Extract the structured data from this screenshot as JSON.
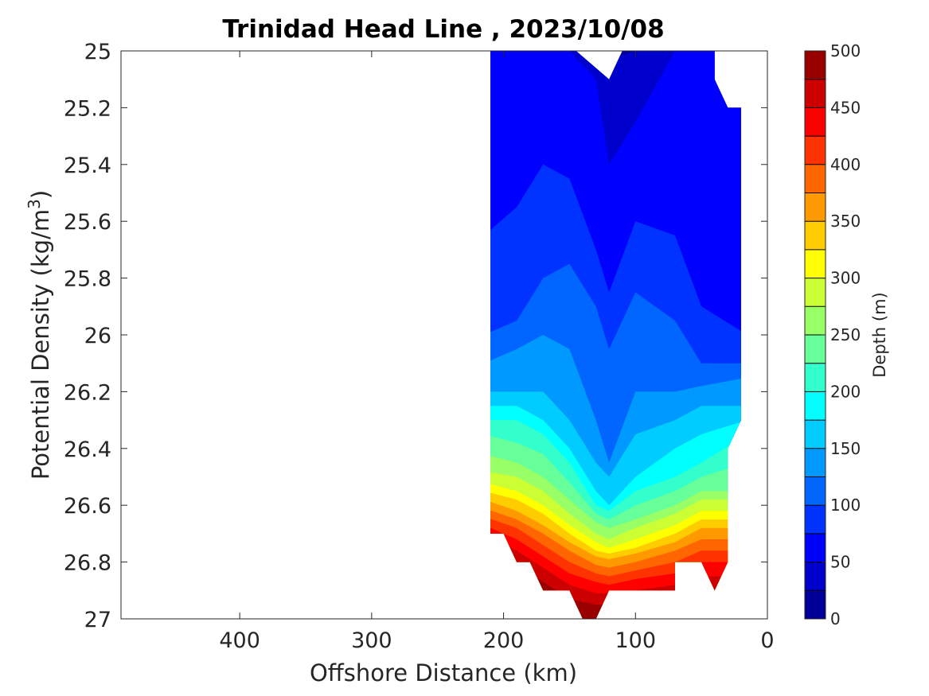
{
  "chart_data": {
    "type": "contour",
    "title": "Trinidad Head Line , 2023/10/08",
    "xlabel": "Offshore Distance (km)",
    "ylabel_main": "Potential Density (kg/m",
    "ylabel_sup": "3",
    "ylabel_close": ")",
    "xlim": [
      490,
      0
    ],
    "x_reversed": true,
    "ylim": [
      25,
      27
    ],
    "y_reversed": true,
    "xticks": [
      400,
      300,
      200,
      100,
      0
    ],
    "yticks": [
      25,
      25.2,
      25.4,
      25.6,
      25.8,
      26,
      26.2,
      26.4,
      26.6,
      26.8,
      27
    ],
    "ytick_labels": [
      "25",
      "25.2",
      "25.4",
      "25.6",
      "25.8",
      "26",
      "26.2",
      "26.4",
      "26.6",
      "26.8",
      "27"
    ],
    "colorbar": {
      "label": "Depth (m)",
      "range": [
        0,
        500
      ],
      "step": 25,
      "ticks": [
        0,
        50,
        100,
        150,
        200,
        250,
        300,
        350,
        400,
        450,
        500
      ],
      "colormap": "jet"
    },
    "coverage_x": [
      210,
      20
    ],
    "boundary": [
      [
        210,
        25.0
      ],
      [
        145,
        25.0
      ],
      [
        120,
        25.1
      ],
      [
        110,
        25.0
      ],
      [
        40,
        25.0
      ],
      [
        40,
        25.1
      ],
      [
        30,
        25.2
      ],
      [
        20,
        25.2
      ],
      [
        20,
        26.3
      ],
      [
        30,
        26.4
      ],
      [
        30,
        26.8
      ],
      [
        40,
        26.9
      ],
      [
        50,
        26.8
      ],
      [
        70,
        26.8
      ],
      [
        70,
        26.9
      ],
      [
        110,
        26.9
      ],
      [
        120,
        26.9
      ],
      [
        130,
        27.0
      ],
      [
        140,
        27.0
      ],
      [
        150,
        26.9
      ],
      [
        170,
        26.9
      ],
      [
        180,
        26.8
      ],
      [
        190,
        26.8
      ],
      [
        200,
        26.7
      ],
      [
        210,
        26.7
      ]
    ],
    "contour_depths": {
      "distance_km": [
        210,
        190,
        170,
        150,
        130,
        120,
        100,
        70,
        50,
        20
      ],
      "rows": [
        {
          "level": 25,
          "density": [
            25.0,
            25.0,
            25.0,
            25.0,
            25.0,
            25.03,
            25.0,
            25.0,
            25.0,
            25.0
          ]
        },
        {
          "level": 50,
          "density": [
            25.0,
            25.0,
            25.0,
            25.0,
            25.1,
            25.4,
            25.25,
            25.0,
            25.0,
            25.0
          ]
        },
        {
          "level": 75,
          "density": [
            25.65,
            25.55,
            25.4,
            25.45,
            25.7,
            25.85,
            25.6,
            25.65,
            25.9,
            26.0
          ]
        },
        {
          "level": 100,
          "density": [
            26.0,
            25.95,
            25.8,
            25.75,
            25.9,
            26.05,
            25.85,
            25.95,
            26.1,
            26.1
          ]
        },
        {
          "level": 125,
          "density": [
            26.1,
            26.05,
            26.0,
            26.05,
            26.3,
            26.45,
            26.2,
            26.2,
            26.18,
            26.15
          ]
        },
        {
          "level": 150,
          "density": [
            26.2,
            26.2,
            26.2,
            26.3,
            26.45,
            26.5,
            26.35,
            26.3,
            26.25,
            26.25
          ]
        },
        {
          "level": 175,
          "density": [
            26.25,
            26.25,
            26.3,
            26.4,
            26.55,
            26.6,
            26.5,
            26.4,
            26.35,
            26.3
          ]
        },
        {
          "level": 200,
          "density": [
            26.3,
            26.3,
            26.35,
            26.45,
            26.6,
            26.62,
            26.55,
            26.5,
            26.45,
            26.35
          ]
        },
        {
          "level": 225,
          "density": [
            26.35,
            26.38,
            26.42,
            26.52,
            26.63,
            26.65,
            26.6,
            26.55,
            26.5,
            26.45
          ]
        },
        {
          "level": 250,
          "density": [
            26.42,
            26.45,
            26.5,
            26.58,
            26.66,
            26.68,
            26.65,
            26.6,
            26.55,
            26.55
          ]
        },
        {
          "level": 275,
          "density": [
            26.48,
            26.5,
            26.55,
            26.63,
            26.7,
            26.72,
            26.68,
            26.63,
            26.58,
            26.58
          ]
        },
        {
          "level": 300,
          "density": [
            26.52,
            26.55,
            26.6,
            26.67,
            26.73,
            26.75,
            26.72,
            26.67,
            26.62,
            26.62
          ]
        },
        {
          "level": 325,
          "density": [
            26.55,
            26.58,
            26.63,
            26.7,
            26.76,
            26.77,
            26.75,
            26.7,
            26.65,
            26.65
          ]
        },
        {
          "level": 350,
          "density": [
            26.58,
            26.62,
            26.67,
            26.73,
            26.78,
            26.79,
            26.77,
            26.73,
            26.68,
            26.68
          ]
        },
        {
          "level": 375,
          "density": [
            26.61,
            26.65,
            26.7,
            26.76,
            26.81,
            26.82,
            26.8,
            26.76,
            26.72,
            26.72
          ]
        },
        {
          "level": 400,
          "density": [
            26.64,
            26.68,
            26.74,
            26.8,
            26.84,
            26.85,
            26.83,
            26.8,
            26.76,
            26.76
          ]
        },
        {
          "level": 425,
          "density": [
            26.67,
            26.72,
            26.78,
            26.84,
            26.87,
            26.88,
            26.86,
            26.84,
            26.8,
            26.8
          ]
        },
        {
          "level": 450,
          "density": [
            26.7,
            26.76,
            26.82,
            26.88,
            26.91,
            26.91,
            26.9,
            26.88,
            26.85,
            26.85
          ]
        },
        {
          "level": 475,
          "density": [
            26.74,
            26.8,
            26.87,
            26.93,
            26.95,
            26.95,
            26.95,
            26.93,
            26.9,
            26.9
          ]
        }
      ]
    }
  }
}
